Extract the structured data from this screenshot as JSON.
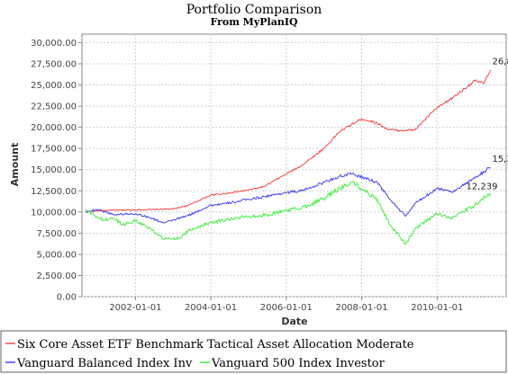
{
  "chart_data": {
    "type": "line",
    "title": "Portfolio Comparison",
    "subtitle": "From MyPlanIQ",
    "xlabel": "Date",
    "ylabel": "Amount",
    "xlim": [
      "2000-08-01",
      "2011-11-01"
    ],
    "ylim": [
      0,
      31000
    ],
    "x_ticks": [
      "2002-01-01",
      "2004-01-01",
      "2006-01-01",
      "2008-01-01",
      "2010-01-01"
    ],
    "y_ticks": [
      "0.00",
      "2,500.00",
      "5,000.00",
      "7,500.00",
      "10,000.00",
      "12,500.00",
      "15,000.00",
      "17,500.00",
      "20,000.00",
      "22,500.00",
      "25,000.00",
      "27,500.00",
      "30,000.00"
    ],
    "grid": true,
    "legend_position": "bottom",
    "series": [
      {
        "name": "Six Core Asset ETF Benchmark Tactical Asset Allocation Moderate",
        "color": "#ff4444",
        "end_label": "26,8",
        "points": [
          [
            "2000-09-01",
            10000
          ],
          [
            "2001-01-01",
            10150
          ],
          [
            "2001-06-01",
            10200
          ],
          [
            "2002-01-01",
            10250
          ],
          [
            "2002-06-01",
            10300
          ],
          [
            "2003-01-01",
            10350
          ],
          [
            "2003-06-01",
            10800
          ],
          [
            "2004-01-01",
            12000
          ],
          [
            "2004-06-01",
            12200
          ],
          [
            "2005-01-01",
            12600
          ],
          [
            "2005-06-01",
            13000
          ],
          [
            "2006-01-01",
            14500
          ],
          [
            "2006-06-01",
            15500
          ],
          [
            "2007-01-01",
            17500
          ],
          [
            "2007-06-01",
            19500
          ],
          [
            "2008-01-01",
            21000
          ],
          [
            "2008-06-01",
            20500
          ],
          [
            "2008-09-01",
            19800
          ],
          [
            "2009-01-01",
            19600
          ],
          [
            "2009-06-01",
            19700
          ],
          [
            "2009-12-01",
            22000
          ],
          [
            "2010-06-01",
            23500
          ],
          [
            "2011-01-01",
            25500
          ],
          [
            "2011-04-01",
            25200
          ],
          [
            "2011-06-01",
            26800
          ]
        ]
      },
      {
        "name": "Vanguard Balanced Index Inv",
        "color": "#4444ff",
        "end_label": "15,3",
        "points": [
          [
            "2000-09-01",
            10000
          ],
          [
            "2001-01-01",
            10300
          ],
          [
            "2001-06-01",
            9700
          ],
          [
            "2002-01-01",
            9800
          ],
          [
            "2002-06-01",
            9300
          ],
          [
            "2002-10-01",
            8700
          ],
          [
            "2003-06-01",
            9600
          ],
          [
            "2004-01-01",
            10800
          ],
          [
            "2004-06-01",
            11000
          ],
          [
            "2005-01-01",
            11500
          ],
          [
            "2005-06-01",
            11800
          ],
          [
            "2006-01-01",
            12300
          ],
          [
            "2006-06-01",
            12500
          ],
          [
            "2007-01-01",
            13500
          ],
          [
            "2007-06-01",
            14200
          ],
          [
            "2007-10-01",
            14500
          ],
          [
            "2008-06-01",
            13500
          ],
          [
            "2008-10-01",
            11500
          ],
          [
            "2009-03-01",
            9500
          ],
          [
            "2009-06-01",
            11000
          ],
          [
            "2010-01-01",
            12800
          ],
          [
            "2010-06-01",
            12400
          ],
          [
            "2011-01-01",
            14000
          ],
          [
            "2011-06-01",
            15300
          ]
        ]
      },
      {
        "name": "Vanguard 500 Index Investor",
        "color": "#44ee44",
        "end_label": "12,239",
        "points": [
          [
            "2000-09-01",
            10300
          ],
          [
            "2000-12-01",
            9600
          ],
          [
            "2001-03-01",
            9000
          ],
          [
            "2001-06-01",
            9300
          ],
          [
            "2001-09-01",
            8500
          ],
          [
            "2002-01-01",
            9000
          ],
          [
            "2002-06-01",
            8000
          ],
          [
            "2002-10-01",
            6800
          ],
          [
            "2003-03-01",
            6900
          ],
          [
            "2003-06-01",
            7800
          ],
          [
            "2004-01-01",
            8800
          ],
          [
            "2004-06-01",
            9100
          ],
          [
            "2005-01-01",
            9500
          ],
          [
            "2005-06-01",
            9600
          ],
          [
            "2006-01-01",
            10200
          ],
          [
            "2006-06-01",
            10500
          ],
          [
            "2007-01-01",
            11600
          ],
          [
            "2007-06-01",
            12800
          ],
          [
            "2007-10-01",
            13500
          ],
          [
            "2008-06-01",
            11500
          ],
          [
            "2008-10-01",
            8500
          ],
          [
            "2009-03-01",
            6200
          ],
          [
            "2009-06-01",
            8000
          ],
          [
            "2010-01-01",
            9800
          ],
          [
            "2010-06-01",
            9300
          ],
          [
            "2011-01-01",
            10800
          ],
          [
            "2011-06-01",
            12239
          ]
        ]
      }
    ]
  }
}
